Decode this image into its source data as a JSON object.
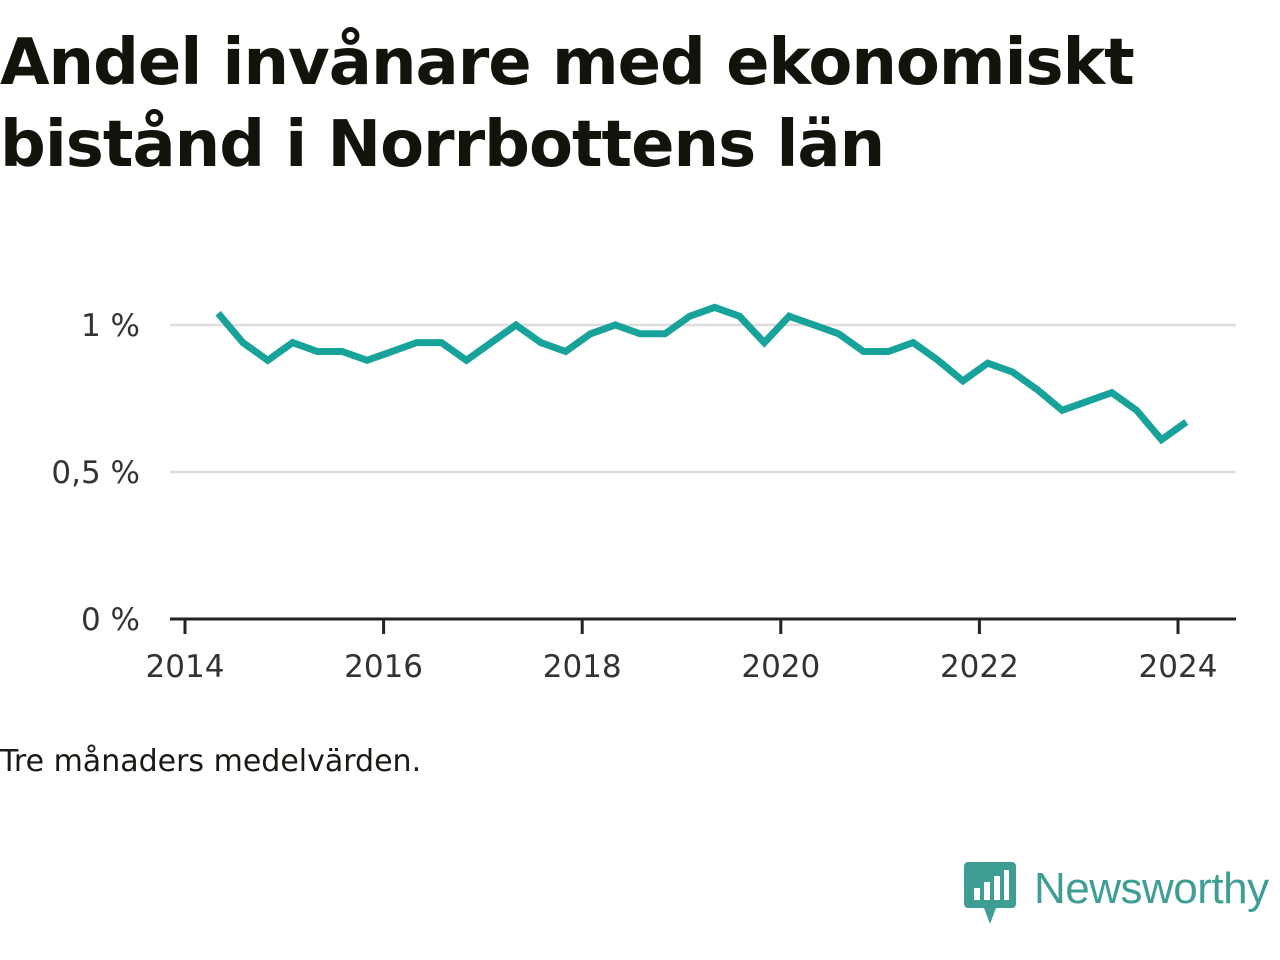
{
  "title": "Andel invånare med ekonomiskt bistånd i Norrbottens län",
  "note": "Tre månaders medelvärden.",
  "brand": {
    "name": "Newsworthy",
    "icon": "bar-chart-speech-bubble-icon",
    "color": "#3f9e94"
  },
  "chart_data": {
    "type": "line",
    "title": "Andel invånare med ekonomiskt bistånd i Norrbottens län",
    "xlabel": "",
    "ylabel": "",
    "x_range": [
      "2014-01",
      "2024-12"
    ],
    "ylim": [
      0,
      1.1
    ],
    "y_ticks": [
      {
        "value": 0,
        "label": "0 %"
      },
      {
        "value": 0.5,
        "label": "0,5 %"
      },
      {
        "value": 1,
        "label": "1 %"
      }
    ],
    "x_ticks": [
      {
        "value": "2014-01",
        "label": "2014"
      },
      {
        "value": "2016-01",
        "label": "2016"
      },
      {
        "value": "2018-01",
        "label": "2018"
      },
      {
        "value": "2020-01",
        "label": "2020"
      },
      {
        "value": "2022-01",
        "label": "2022"
      },
      {
        "value": "2024-01",
        "label": "2024"
      }
    ],
    "grid": true,
    "line_color": "#17a399",
    "series": [
      {
        "x": [
          "2014-05",
          "2014-08",
          "2014-11",
          "2015-02",
          "2015-05",
          "2015-08",
          "2015-11",
          "2016-02",
          "2016-05",
          "2016-08",
          "2016-11",
          "2017-02",
          "2017-05",
          "2017-08",
          "2017-11",
          "2018-02",
          "2018-05",
          "2018-08",
          "2018-11",
          "2019-02",
          "2019-05",
          "2019-08",
          "2019-11",
          "2020-02",
          "2020-05",
          "2020-08",
          "2020-11",
          "2021-02",
          "2021-05",
          "2021-08",
          "2021-11",
          "2022-02",
          "2022-05",
          "2022-08",
          "2022-11",
          "2023-02",
          "2023-05",
          "2023-08",
          "2023-11",
          "2024-02"
        ],
        "values": [
          1.04,
          0.94,
          0.88,
          0.94,
          0.91,
          0.91,
          0.88,
          0.91,
          0.94,
          0.94,
          0.88,
          0.94,
          1.0,
          0.94,
          0.91,
          0.97,
          1.0,
          0.97,
          0.97,
          1.03,
          1.06,
          1.03,
          0.94,
          1.03,
          1.0,
          0.97,
          0.91,
          0.91,
          0.94,
          0.88,
          0.81,
          0.87,
          0.84,
          0.78,
          0.71,
          0.74,
          0.77,
          0.71,
          0.61,
          0.67
        ]
      }
    ]
  }
}
